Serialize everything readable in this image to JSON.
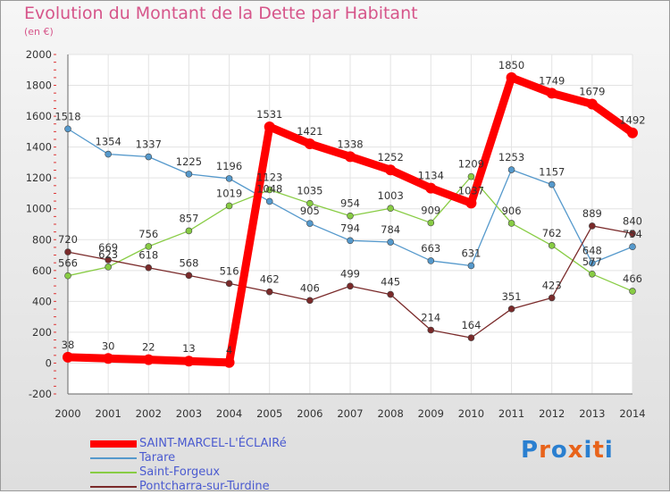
{
  "header": {
    "title": "Evolution du Montant de la Dette par Habitant",
    "subtitle": "(en €)"
  },
  "chart_data": {
    "type": "line",
    "title": "Evolution du Montant de la Dette par Habitant",
    "subtitle": "(en €)",
    "x": [
      2000,
      2001,
      2002,
      2003,
      2004,
      2005,
      2006,
      2007,
      2008,
      2009,
      2010,
      2011,
      2012,
      2013,
      2014
    ],
    "ylim": [
      -200,
      2000
    ],
    "yticks": [
      -200,
      0,
      200,
      400,
      600,
      800,
      1000,
      1200,
      1400,
      1600,
      1800,
      2000
    ],
    "grid": true,
    "legend": "bottom-left",
    "series": [
      {
        "name": "SAINT-MARCEL-L'ÉCLAIRé",
        "color": "#ff0000",
        "values": [
          38,
          30,
          22,
          13,
          4,
          1531,
          1421,
          1338,
          1252,
          1134,
          1037,
          1850,
          1749,
          1679,
          1492
        ]
      },
      {
        "name": "Tarare",
        "color": "#5599cc",
        "values": [
          1518,
          1354,
          1337,
          1225,
          1196,
          1048,
          905,
          794,
          784,
          663,
          631,
          1253,
          1157,
          648,
          754
        ]
      },
      {
        "name": "Saint-Forgeux",
        "color": "#88cc44",
        "values": [
          566,
          623,
          756,
          857,
          1019,
          1123,
          1035,
          954,
          1003,
          909,
          1209,
          906,
          762,
          577,
          466
        ]
      },
      {
        "name": "Pontcharra-sur-Turdine",
        "color": "#7a2a2a",
        "values": [
          720,
          669,
          618,
          568,
          516,
          462,
          406,
          499,
          445,
          214,
          164,
          351,
          423,
          889,
          840
        ]
      }
    ]
  },
  "logo": {
    "letters": [
      "P",
      "r",
      "o",
      "x",
      "i",
      "t",
      "i"
    ],
    "colors": [
      "#2a7fd0",
      "#e8631a",
      "#2a7fd0",
      "#e8631a",
      "#2a7fd0",
      "#e8631a",
      "#2a7fd0"
    ]
  }
}
